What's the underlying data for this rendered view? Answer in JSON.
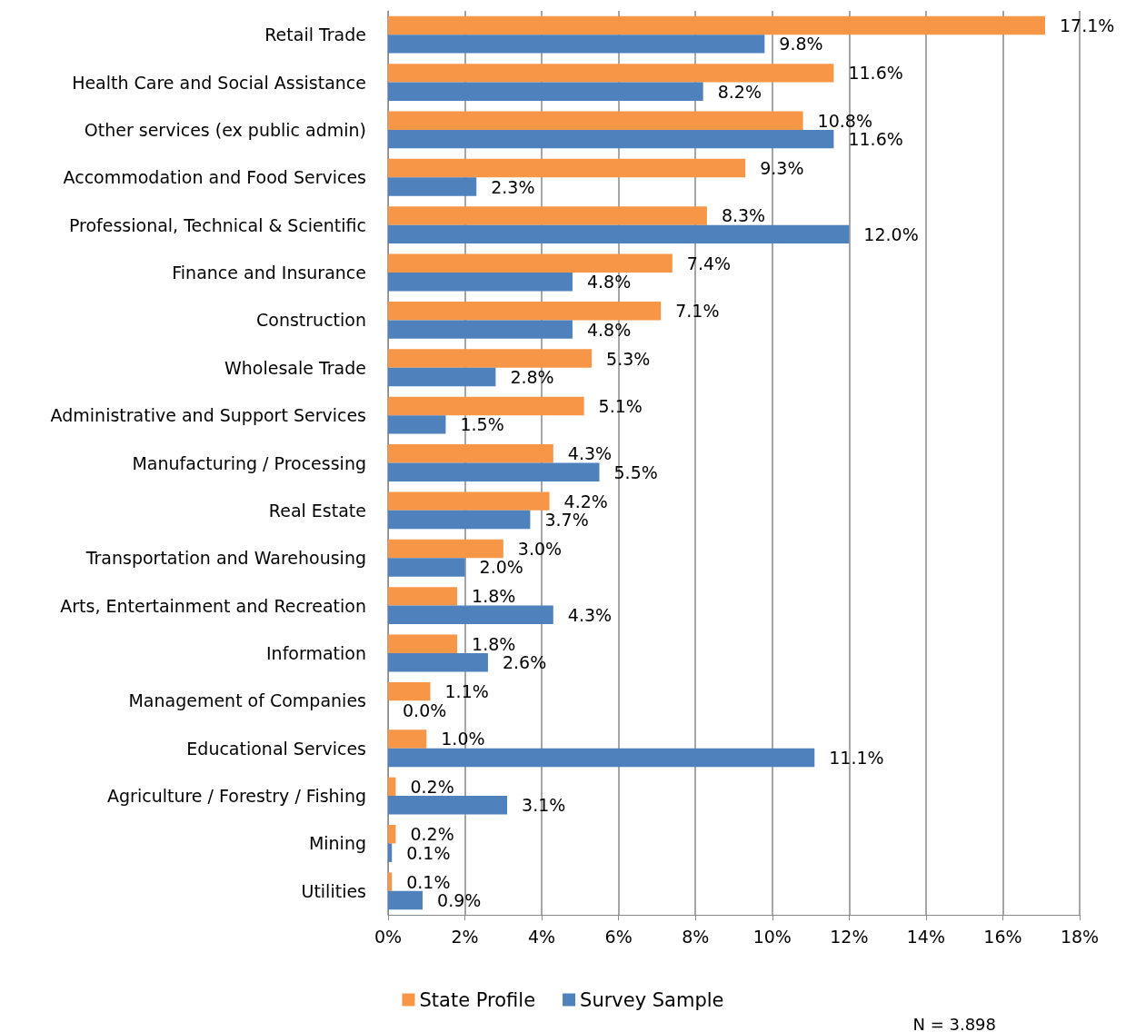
{
  "chart_data": {
    "type": "bar",
    "orientation": "horizontal",
    "categories": [
      "Retail Trade",
      "Health Care and Social Assistance",
      "Other services (ex public admin)",
      "Accommodation and Food Services",
      "Professional, Technical & Scientific",
      "Finance and Insurance",
      "Construction",
      "Wholesale Trade",
      "Administrative and Support Services",
      "Manufacturing / Processing",
      "Real Estate",
      "Transportation and Warehousing",
      "Arts, Entertainment and Recreation",
      "Information",
      "Management of Companies",
      "Educational Services",
      "Agriculture / Forestry / Fishing",
      "Mining",
      "Utilities"
    ],
    "series": [
      {
        "name": "State Profile",
        "color": "#f79646",
        "values": [
          17.1,
          11.6,
          10.8,
          9.3,
          8.3,
          7.4,
          7.1,
          5.3,
          5.1,
          4.3,
          4.2,
          3.0,
          1.8,
          1.8,
          1.1,
          1.0,
          0.2,
          0.2,
          0.1
        ],
        "value_labels": [
          "17.1%",
          "11.6%",
          "10.8%",
          "9.3%",
          "8.3%",
          "7.4%",
          "7.1%",
          "5.3%",
          "5.1%",
          "4.3%",
          "4.2%",
          "3.0%",
          "1.8%",
          "1.8%",
          "1.1%",
          "1.0%",
          "0.2%",
          "0.2%",
          "0.1%"
        ]
      },
      {
        "name": "Survey Sample",
        "color": "#4f81bd",
        "values": [
          9.8,
          8.2,
          11.6,
          2.3,
          12.0,
          4.8,
          4.8,
          2.8,
          1.5,
          5.5,
          3.7,
          2.0,
          4.3,
          2.6,
          0.0,
          11.1,
          3.1,
          0.1,
          0.9
        ],
        "value_labels": [
          "9.8%",
          "8.2%",
          "11.6%",
          "2.3%",
          "12.0%",
          "4.8%",
          "4.8%",
          "2.8%",
          "1.5%",
          "5.5%",
          "3.7%",
          "2.0%",
          "4.3%",
          "2.6%",
          "0.0%",
          "11.1%",
          "3.1%",
          "0.1%",
          "0.9%"
        ]
      }
    ],
    "xlim": [
      0,
      18
    ],
    "xticks": [
      {
        "value": 0,
        "label": "0%"
      },
      {
        "value": 2,
        "label": "2%"
      },
      {
        "value": 4,
        "label": "4%"
      },
      {
        "value": 6,
        "label": "6%"
      },
      {
        "value": 8,
        "label": "8%"
      },
      {
        "value": 10,
        "label": "10%"
      },
      {
        "value": 12,
        "label": "12%"
      },
      {
        "value": 14,
        "label": "14%"
      },
      {
        "value": 16,
        "label": "16%"
      },
      {
        "value": 18,
        "label": "18%"
      }
    ],
    "grid": "x",
    "legend": "bottom",
    "annotations": [
      "N = 3.898"
    ]
  }
}
